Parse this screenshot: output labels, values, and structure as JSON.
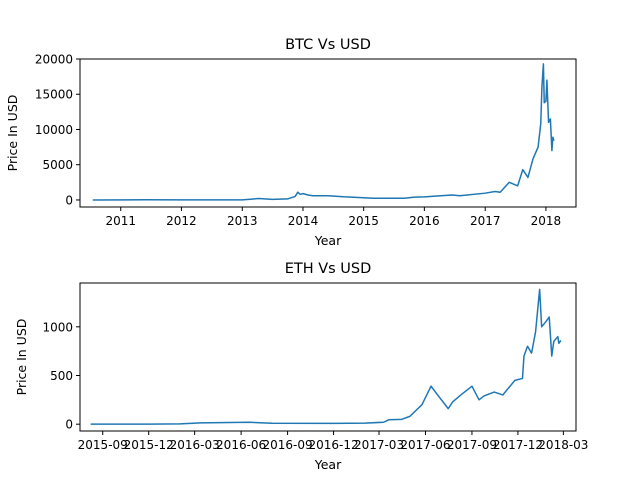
{
  "chart_data": [
    {
      "type": "line",
      "title": "BTC Vs USD",
      "xlabel": "Year",
      "ylabel": "Price In USD",
      "xlim": [
        "2010-05-01",
        "2018-07-01"
      ],
      "ylim": [
        -1000,
        20000
      ],
      "x_ticks": [
        "2011-01-01",
        "2012-01-01",
        "2013-01-01",
        "2014-01-01",
        "2015-01-01",
        "2016-01-01",
        "2017-01-01",
        "2018-01-01"
      ],
      "x_tick_labels": [
        "2011",
        "2012",
        "2013",
        "2014",
        "2015",
        "2016",
        "2017",
        "2018"
      ],
      "y_ticks": [
        0,
        5000,
        10000,
        15000,
        20000
      ],
      "y_tick_labels": [
        "0",
        "5000",
        "10000",
        "15000",
        "20000"
      ],
      "grid": false,
      "series": [
        {
          "color": "#1f77b4",
          "points": [
            [
              "2010-07-17",
              0
            ],
            [
              "2011-06-01",
              20
            ],
            [
              "2012-01-01",
              5
            ],
            [
              "2013-01-01",
              15
            ],
            [
              "2013-04-10",
              200
            ],
            [
              "2013-07-01",
              80
            ],
            [
              "2013-10-01",
              150
            ],
            [
              "2013-11-15",
              500
            ],
            [
              "2013-12-01",
              1100
            ],
            [
              "2013-12-15",
              800
            ],
            [
              "2014-01-01",
              900
            ],
            [
              "2014-02-01",
              700
            ],
            [
              "2014-03-01",
              600
            ],
            [
              "2014-06-01",
              600
            ],
            [
              "2014-09-01",
              450
            ],
            [
              "2014-12-01",
              350
            ],
            [
              "2015-03-01",
              250
            ],
            [
              "2015-06-01",
              250
            ],
            [
              "2015-09-01",
              240
            ],
            [
              "2015-11-05",
              400
            ],
            [
              "2016-01-01",
              430
            ],
            [
              "2016-06-15",
              700
            ],
            [
              "2016-08-01",
              600
            ],
            [
              "2016-12-31",
              960
            ],
            [
              "2017-03-01",
              1200
            ],
            [
              "2017-04-01",
              1100
            ],
            [
              "2017-05-25",
              2500
            ],
            [
              "2017-07-15",
              2000
            ],
            [
              "2017-08-15",
              4300
            ],
            [
              "2017-09-15",
              3200
            ],
            [
              "2017-10-15",
              5800
            ],
            [
              "2017-11-15",
              7500
            ],
            [
              "2017-12-01",
              10800
            ],
            [
              "2017-12-08",
              16000
            ],
            [
              "2017-12-17",
              19300
            ],
            [
              "2017-12-22",
              13800
            ],
            [
              "2018-01-01",
              14000
            ],
            [
              "2018-01-07",
              17000
            ],
            [
              "2018-01-17",
              11000
            ],
            [
              "2018-01-28",
              11500
            ],
            [
              "2018-02-06",
              7000
            ],
            [
              "2018-02-12",
              8900
            ],
            [
              "2018-02-18",
              8400
            ]
          ]
        }
      ]
    },
    {
      "type": "line",
      "title": "ETH Vs USD",
      "xlabel": "Year",
      "ylabel": "Price In USD",
      "xlim": [
        "2015-07-18",
        "2018-03-26"
      ],
      "ylim": [
        -70,
        1450
      ],
      "x_ticks": [
        "2015-09-01",
        "2015-12-01",
        "2016-03-01",
        "2016-06-01",
        "2016-09-01",
        "2016-12-01",
        "2017-03-01",
        "2017-06-01",
        "2017-09-01",
        "2017-12-01",
        "2018-03-01"
      ],
      "x_tick_labels": [
        "2015-09",
        "2015-12",
        "2016-03",
        "2016-06",
        "2016-09",
        "2016-12",
        "2017-03",
        "2017-06",
        "2017-09",
        "2017-12",
        "2018-03"
      ],
      "y_ticks": [
        0,
        500,
        1000
      ],
      "y_tick_labels": [
        "0",
        "500",
        "1000"
      ],
      "grid": false,
      "series": [
        {
          "color": "#1f77b4",
          "points": [
            [
              "2015-08-08",
              1
            ],
            [
              "2015-12-01",
              1
            ],
            [
              "2016-02-01",
              3
            ],
            [
              "2016-03-13",
              14
            ],
            [
              "2016-06-17",
              20
            ],
            [
              "2016-08-01",
              10
            ],
            [
              "2016-12-01",
              8
            ],
            [
              "2017-02-01",
              11
            ],
            [
              "2017-03-10",
              20
            ],
            [
              "2017-03-20",
              45
            ],
            [
              "2017-04-15",
              50
            ],
            [
              "2017-05-01",
              80
            ],
            [
              "2017-05-25",
              200
            ],
            [
              "2017-06-12",
              390
            ],
            [
              "2017-06-25",
              300
            ],
            [
              "2017-07-16",
              160
            ],
            [
              "2017-07-25",
              230
            ],
            [
              "2017-08-10",
              300
            ],
            [
              "2017-09-01",
              390
            ],
            [
              "2017-09-15",
              250
            ],
            [
              "2017-09-25",
              290
            ],
            [
              "2017-10-15",
              330
            ],
            [
              "2017-11-01",
              300
            ],
            [
              "2017-11-25",
              450
            ],
            [
              "2017-12-10",
              470
            ],
            [
              "2017-12-13",
              700
            ],
            [
              "2017-12-20",
              800
            ],
            [
              "2017-12-28",
              730
            ],
            [
              "2018-01-05",
              950
            ],
            [
              "2018-01-13",
              1385
            ],
            [
              "2018-01-17",
              1000
            ],
            [
              "2018-01-25",
              1050
            ],
            [
              "2018-02-01",
              1100
            ],
            [
              "2018-02-06",
              700
            ],
            [
              "2018-02-10",
              850
            ],
            [
              "2018-02-18",
              900
            ],
            [
              "2018-02-20",
              830
            ],
            [
              "2018-02-24",
              860
            ]
          ]
        }
      ]
    }
  ]
}
